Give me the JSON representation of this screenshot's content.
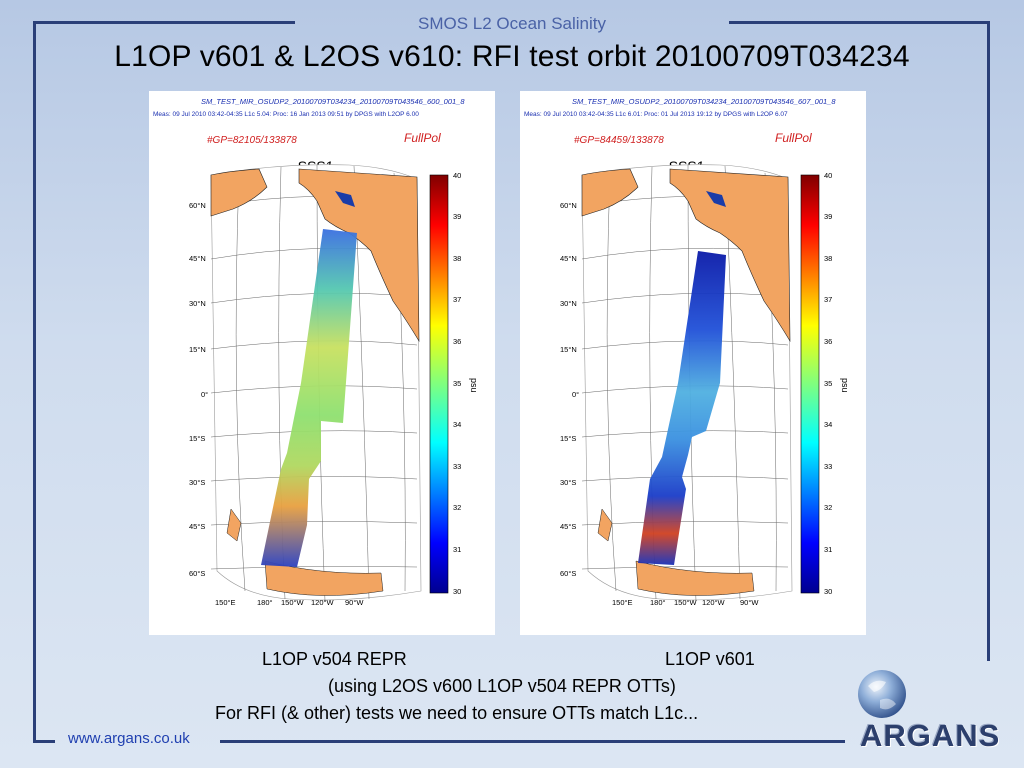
{
  "header": {
    "label": "SMOS L2 Ocean Salinity"
  },
  "title": "L1OP v601 & L2OS v610: RFI test orbit 20100709T034234",
  "panels": [
    {
      "filename": "SM_TEST_MIR_OSUDP2_20100709T034234_20100709T043546_600_001_8",
      "meta": "Meas: 09 Jul 2010 03:42-04:35 L1c 5.04: Proc: 16 Jan 2013 09:51 by DPGS with L2OP 6.00",
      "gp": "#GP=82105/133878",
      "mode": "FullPol",
      "map_title": "SSS1"
    },
    {
      "filename": "SM_TEST_MIR_OSUDP2_20100709T034234_20100709T043546_607_001_8",
      "meta": "Meas: 09 Jul 2010 03:42-04:35 L1c 6.01: Proc: 01 Jul 2013 19:12 by DPGS with L2OP 6.07",
      "gp": "#GP=84459/133878",
      "mode": "FullPol",
      "map_title": "SSS1"
    }
  ],
  "map_axes": {
    "lat_labels": [
      "60°N",
      "45°N",
      "30°N",
      "15°N",
      "0°",
      "15°S",
      "30°S",
      "45°S",
      "60°S"
    ],
    "lon_labels": [
      "150°E",
      "180°",
      "150°W",
      "120°W",
      "90°W"
    ],
    "colorbar_ticks": [
      "40",
      "39",
      "38",
      "37",
      "36",
      "35",
      "34",
      "33",
      "32",
      "31",
      "30"
    ],
    "colorbar_label": "psu",
    "colorbar_range": [
      30,
      40
    ]
  },
  "captions": {
    "left": "L1OP v504 REPR",
    "right": "L1OP v601",
    "line2": "(using L2OS v600 L1OP v504 REPR OTTs)",
    "line3": "For RFI (& other) tests we need to ensure OTTs match L1c..."
  },
  "footer": {
    "url": "www.argans.co.uk"
  },
  "logo": {
    "text": "ARGANS"
  },
  "colors": {
    "land": "#f2a461",
    "frame": "#2a3f78",
    "title_blue": "#4a62a6"
  }
}
